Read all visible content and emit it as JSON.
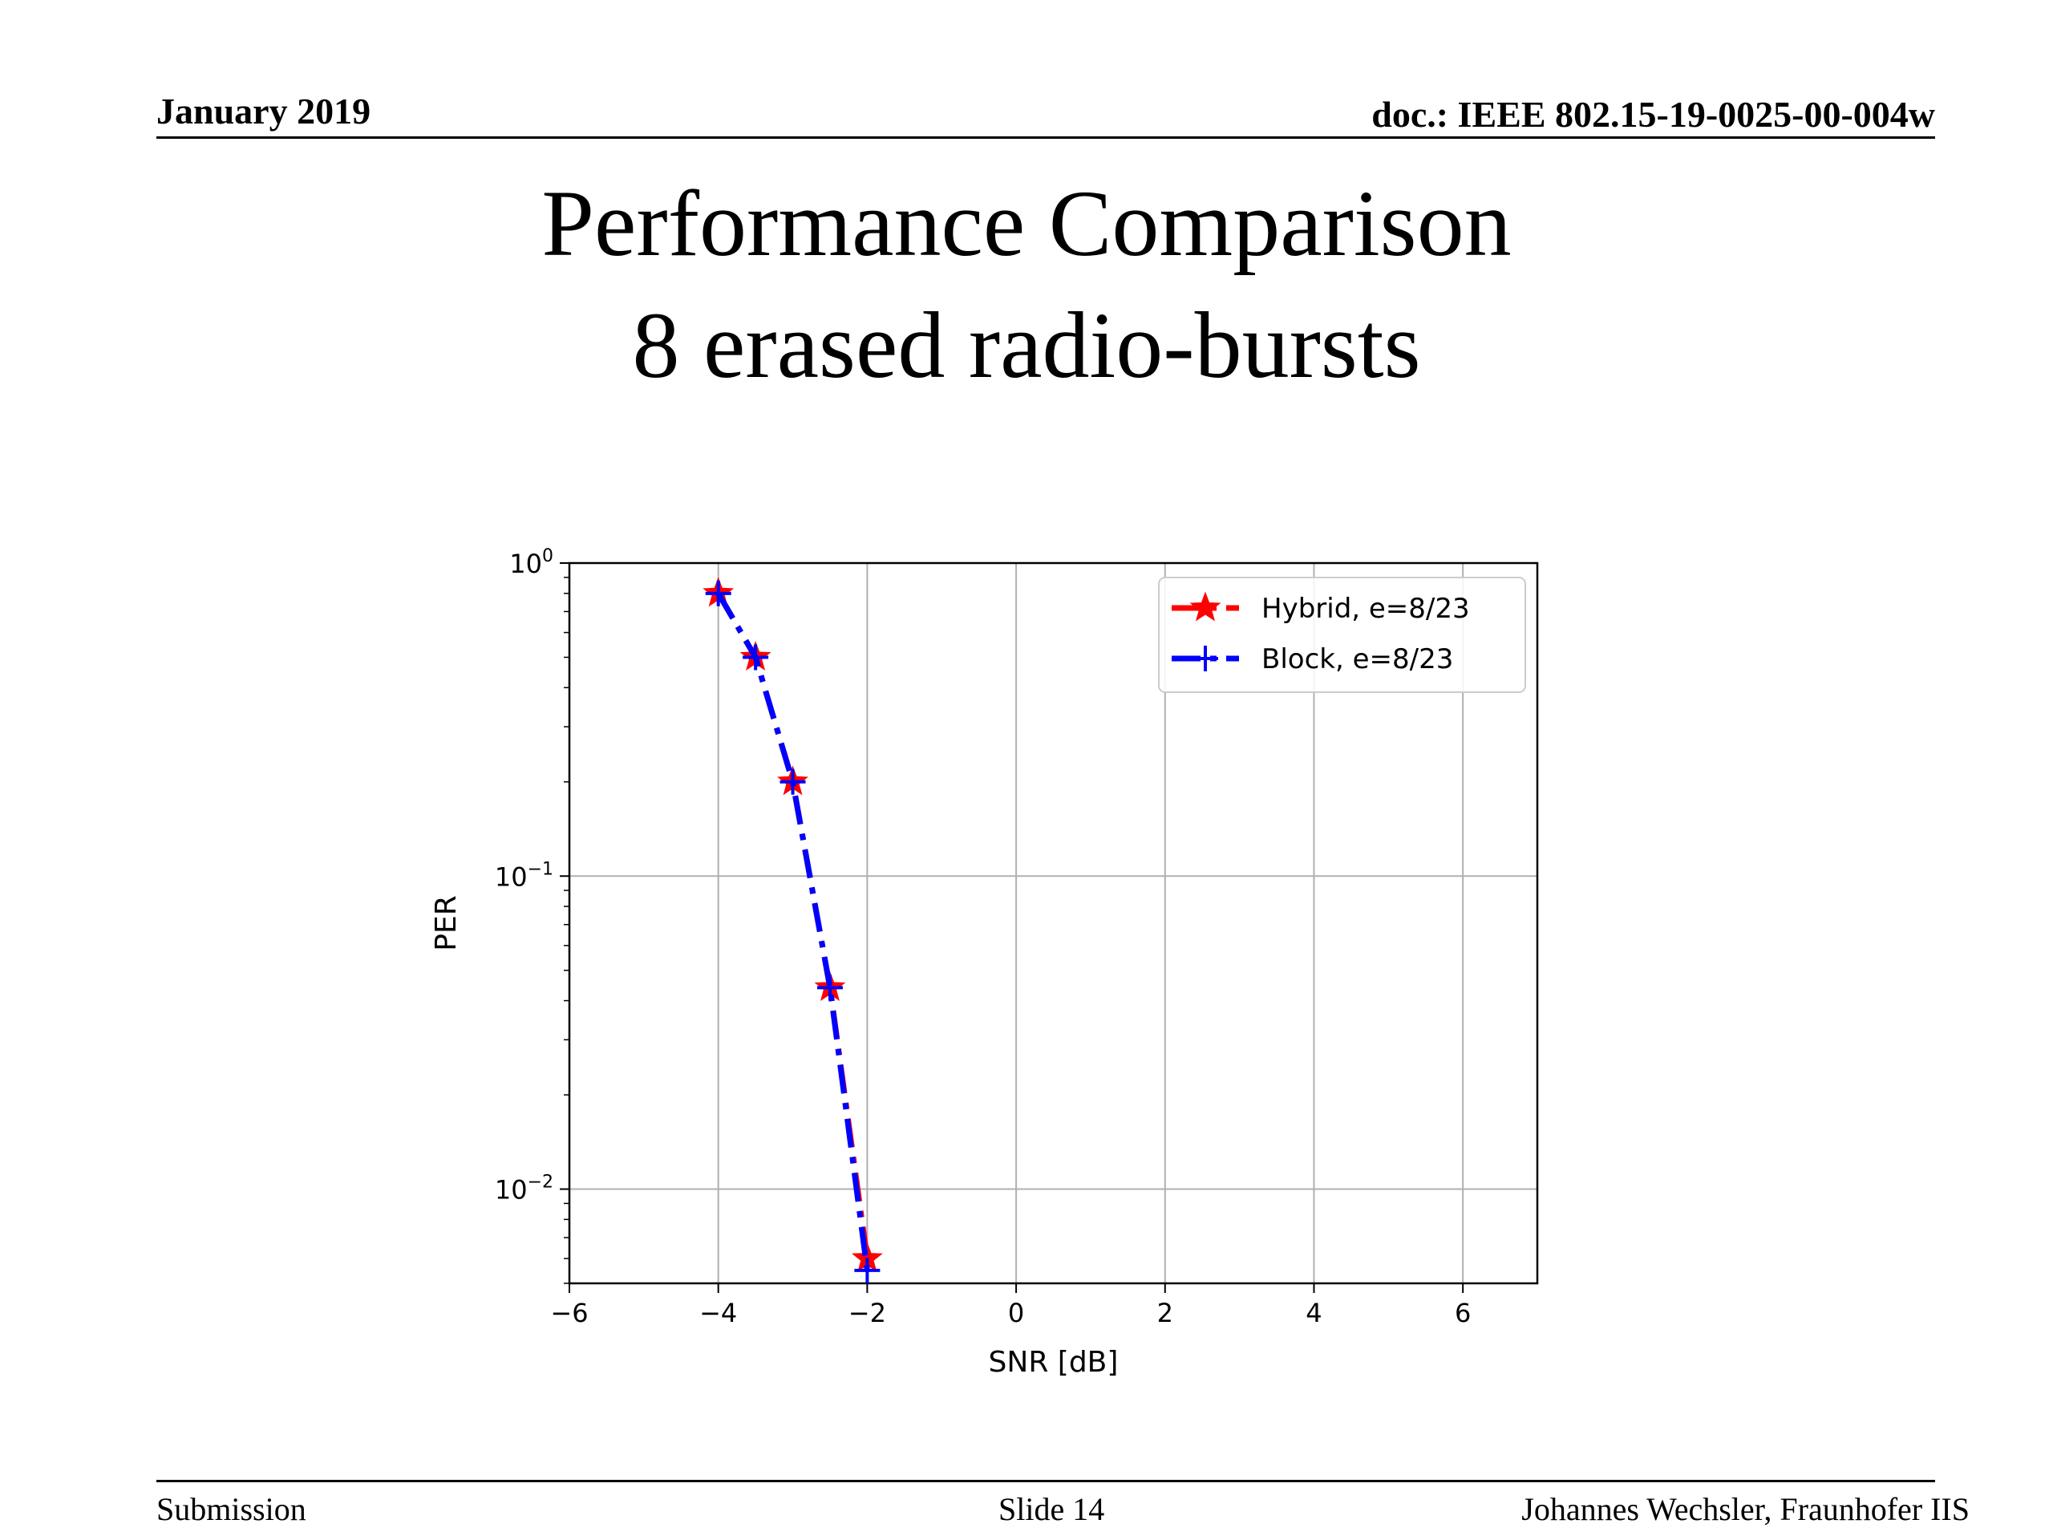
{
  "header": {
    "date": "January 2019",
    "doc_id": "doc.: IEEE 802.15-19-0025-00-004w"
  },
  "slide": {
    "title_line1": "Performance Comparison",
    "title_line2": "8 erased radio-bursts"
  },
  "footer": {
    "left": "Submission",
    "center": "Slide 14",
    "right": "Johannes Wechsler, Fraunhofer IIS"
  },
  "chart_data": {
    "type": "line",
    "xlabel": "SNR [dB]",
    "ylabel": "PER",
    "xlim": [
      -6,
      7
    ],
    "ylim": [
      0.005,
      1
    ],
    "yscale": "log",
    "grid": true,
    "legend_position": "top-right",
    "xticks": [
      -6,
      -4,
      -2,
      0,
      2,
      4,
      6
    ],
    "xtick_labels": [
      "−6",
      "−4",
      "−2",
      "0",
      "2",
      "4",
      "6"
    ],
    "yticks": [
      1,
      0.1,
      0.01
    ],
    "ytick_labels": [
      {
        "base": "10",
        "exp": "0"
      },
      {
        "base": "10",
        "exp": "−1"
      },
      {
        "base": "10",
        "exp": "−2"
      }
    ],
    "series": [
      {
        "name": "Hybrid, e=8/23",
        "color": "#ff0000",
        "marker": "star",
        "line_style": "dashdot",
        "x": [
          -4,
          -3.5,
          -3,
          -2.5,
          -2
        ],
        "y": [
          0.8,
          0.5,
          0.2,
          0.044,
          0.006
        ]
      },
      {
        "name": "Block, e=8/23",
        "color": "#0000ff",
        "marker": "plus",
        "line_style": "dashdot",
        "x": [
          -4,
          -3.5,
          -3,
          -2.5,
          -2
        ],
        "y": [
          0.8,
          0.5,
          0.2,
          0.044,
          0.0055
        ]
      }
    ]
  }
}
